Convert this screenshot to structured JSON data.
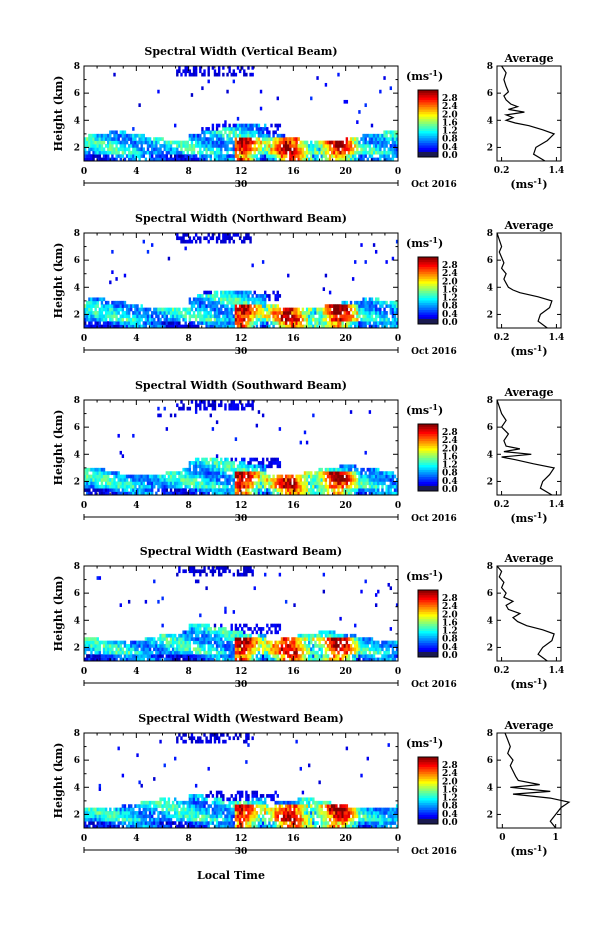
{
  "xlabel": "Local Time",
  "date_label": "Oct 2016",
  "x_mid_label": "30",
  "colorbar": {
    "unit": "ms",
    "unit_exp": "-1",
    "ticks": [
      "2.8",
      "2.4",
      "2.0",
      "1.6",
      "1.2",
      "0.8",
      "0.4",
      "0.0"
    ]
  },
  "chart_data": [
    {
      "type": "heatmap",
      "title": "Spectral Width (Vertical Beam)",
      "ylabel": "Height (km)",
      "x_ticks": [
        "0",
        "4",
        "8",
        "12",
        "16",
        "20",
        "0"
      ],
      "y_ticks": [
        "2",
        "4",
        "6",
        "8"
      ],
      "xlim": [
        0,
        24
      ],
      "ylim": [
        1,
        8
      ],
      "upper_echo_start_hour": 1.6,
      "avg_profile": {
        "title": "Average",
        "xlabel": "ms",
        "x_ticks": [
          "0.2",
          "1.4"
        ],
        "y_ticks": [
          "2",
          "4",
          "6",
          "8"
        ],
        "heights": [
          1,
          1.5,
          2,
          2.5,
          3,
          3.3,
          3.6,
          3.8,
          4,
          4.2,
          4.4,
          4.6,
          4.8,
          5,
          5.2,
          5.5,
          5.8,
          6.1,
          6.5,
          7,
          7.5,
          8
        ],
        "values": [
          1.15,
          0.9,
          0.95,
          1.2,
          1.35,
          1.1,
          0.8,
          0.5,
          0.3,
          0.45,
          0.3,
          0.7,
          0.35,
          0.55,
          0.4,
          0.3,
          0.25,
          0.35,
          0.3,
          0.25,
          0.3,
          0.2
        ]
      }
    },
    {
      "type": "heatmap",
      "title": "Spectral Width (Northward Beam)",
      "ylabel": "Height (km)",
      "x_ticks": [
        "0",
        "4",
        "8",
        "12",
        "16",
        "20",
        "0"
      ],
      "y_ticks": [
        "2",
        "4",
        "6",
        "8"
      ],
      "xlim": [
        0,
        24
      ],
      "ylim": [
        1,
        8
      ],
      "upper_echo_start_hour": 1.3,
      "avg_profile": {
        "title": "Average",
        "xlabel": "ms",
        "x_ticks": [
          "0.2",
          "1.4"
        ],
        "y_ticks": [
          "2",
          "4",
          "6",
          "8"
        ],
        "heights": [
          1,
          1.5,
          2,
          2.5,
          3,
          3.3,
          3.6,
          3.8,
          4,
          4.3,
          4.6,
          5,
          5.4,
          5.8,
          6.2,
          6.6,
          7,
          7.5,
          8
        ],
        "values": [
          1.2,
          1.0,
          1.05,
          1.25,
          1.3,
          1.0,
          0.6,
          0.45,
          0.35,
          0.3,
          0.25,
          0.3,
          0.2,
          0.25,
          0.2,
          0.15,
          0.2,
          0.15,
          0.1
        ]
      }
    },
    {
      "type": "heatmap",
      "title": "Spectral Width (Southward Beam)",
      "ylabel": "Height (km)",
      "x_ticks": [
        "0",
        "4",
        "8",
        "12",
        "16",
        "20",
        "0"
      ],
      "y_ticks": [
        "2",
        "4",
        "6",
        "8"
      ],
      "xlim": [
        0,
        24
      ],
      "ylim": [
        1,
        8
      ],
      "upper_echo_start_hour": 1.4,
      "avg_profile": {
        "title": "Average",
        "xlabel": "ms",
        "x_ticks": [
          "0.2",
          "1.4"
        ],
        "y_ticks": [
          "2",
          "4",
          "6",
          "8"
        ],
        "heights": [
          1,
          1.5,
          2,
          2.5,
          3,
          3.3,
          3.6,
          3.8,
          4,
          4.2,
          4.4,
          4.6,
          5,
          5.5,
          6,
          6.5,
          7,
          7.5,
          8
        ],
        "values": [
          1.3,
          1.05,
          1.1,
          1.25,
          1.35,
          0.9,
          0.5,
          0.2,
          0.85,
          0.25,
          0.6,
          0.3,
          0.25,
          0.35,
          0.2,
          0.3,
          0.2,
          0.15,
          0.1
        ]
      }
    },
    {
      "type": "heatmap",
      "title": "Spectral Width (Eastward Beam)",
      "ylabel": "Height (km)",
      "x_ticks": [
        "0",
        "4",
        "8",
        "12",
        "16",
        "20",
        "0"
      ],
      "y_ticks": [
        "2",
        "4",
        "6",
        "8"
      ],
      "xlim": [
        0,
        24
      ],
      "ylim": [
        1,
        8
      ],
      "upper_echo_start_hour": 0.9,
      "avg_profile": {
        "title": "Average",
        "xlabel": "ms",
        "x_ticks": [
          "0.2",
          "1.4"
        ],
        "y_ticks": [
          "2",
          "4",
          "6",
          "8"
        ],
        "heights": [
          1,
          1.5,
          2,
          2.5,
          3,
          3.3,
          3.6,
          3.9,
          4.2,
          4.5,
          4.8,
          5.1,
          5.4,
          5.7,
          6,
          6.4,
          6.8,
          7.2,
          7.6,
          8
        ],
        "values": [
          1.2,
          1.0,
          1.1,
          1.3,
          1.35,
          1.1,
          0.75,
          0.55,
          0.45,
          0.6,
          0.35,
          0.3,
          0.45,
          0.25,
          0.3,
          0.2,
          0.25,
          0.15,
          0.2,
          0.1
        ]
      }
    },
    {
      "type": "heatmap",
      "title": "Spectral Width (Westward Beam)",
      "ylabel": "Height (km)",
      "x_ticks": [
        "0",
        "4",
        "8",
        "12",
        "16",
        "20",
        "0"
      ],
      "y_ticks": [
        "2",
        "4",
        "6",
        "8"
      ],
      "xlim": [
        0,
        24
      ],
      "ylim": [
        1,
        8
      ],
      "upper_echo_start_hour": 1.0,
      "avg_profile": {
        "title": "Average",
        "xlabel": "ms",
        "x_ticks": [
          "0",
          "1"
        ],
        "y_ticks": [
          "2",
          "4",
          "6",
          "8"
        ],
        "heights": [
          1,
          1.5,
          2,
          2.5,
          2.9,
          3.2,
          3.5,
          3.7,
          4,
          4.2,
          4.5,
          4.8,
          5.2,
          5.6,
          6,
          6.5,
          7,
          7.5,
          8
        ],
        "values": [
          1.0,
          0.9,
          1.0,
          1.1,
          1.25,
          0.9,
          0.2,
          0.9,
          0.15,
          0.7,
          0.3,
          0.25,
          0.2,
          0.15,
          0.2,
          0.1,
          0.15,
          0.1,
          0.05
        ]
      }
    }
  ]
}
